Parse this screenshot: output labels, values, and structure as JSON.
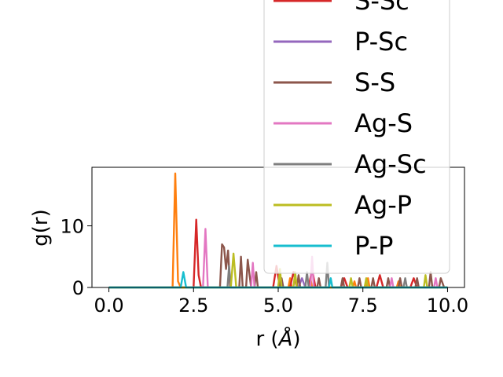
{
  "chart_data": {
    "type": "line",
    "title": "",
    "xlabel": "r ($\\AA$)",
    "xlabel_parts": {
      "prefix": "r (",
      "symbol": "Å",
      "suffix": ")"
    },
    "ylabel": "g(r)",
    "xlim": [
      -0.5,
      10.5
    ],
    "ylim": [
      0,
      19.5
    ],
    "xticks": [
      0.0,
      2.5,
      5.0,
      7.5,
      10.0
    ],
    "xtick_labels": [
      "0.0",
      "2.5",
      "5.0",
      "7.5",
      "10.0"
    ],
    "yticks": [
      0,
      10
    ],
    "ytick_labels": [
      "0",
      "10"
    ],
    "grid": false,
    "legend_placement": "top-right",
    "series": [
      {
        "name": "S-Sc",
        "color": "#d62728",
        "x": [
          0,
          2.5,
          2.58,
          2.65,
          2.72,
          4.85,
          4.95,
          5.05,
          5.35,
          5.45,
          5.55,
          5.9,
          6.0,
          6.1,
          6.85,
          6.95,
          7.05,
          7.9,
          8.0,
          8.1,
          8.9,
          9.0,
          9.1,
          10.0
        ],
        "y": [
          0,
          0,
          11,
          2,
          0,
          0,
          3.5,
          0,
          0,
          2.5,
          0,
          0,
          3,
          0,
          0,
          1.5,
          0,
          0,
          2,
          0,
          0,
          1.5,
          0,
          0
        ]
      },
      {
        "name": "P-Sc",
        "color": "#9467bd",
        "x": [
          0,
          5.6,
          5.7,
          5.8,
          10.0
        ],
        "y": [
          0,
          0,
          1.5,
          0,
          0
        ]
      },
      {
        "name": "S-S",
        "color": "#8c564b",
        "x": [
          0,
          3.28,
          3.34,
          3.4,
          3.46,
          3.52,
          3.58,
          3.85,
          3.9,
          3.95,
          4.05,
          4.1,
          4.2,
          4.3,
          4.35,
          4.4,
          5.05,
          5.1,
          5.15,
          5.55,
          5.6,
          5.65,
          6.15,
          6.2,
          6.25,
          6.85,
          6.9,
          6.95,
          7.35,
          7.4,
          7.45,
          7.75,
          7.8,
          7.85,
          8.2,
          8.25,
          8.3,
          8.55,
          8.6,
          8.65,
          9.05,
          9.1,
          9.15,
          9.45,
          9.5,
          9.55,
          9.75,
          9.8,
          9.9,
          10.0
        ],
        "y": [
          0,
          0,
          7,
          6.5,
          3,
          6,
          0,
          0,
          5,
          0,
          0,
          4.5,
          0,
          0,
          2.5,
          0,
          0,
          1.5,
          0,
          0,
          2,
          0,
          0,
          1.5,
          0,
          0,
          1.5,
          0,
          0,
          1.5,
          0,
          0,
          1.5,
          0,
          0,
          1.5,
          0,
          0,
          1.5,
          0,
          0,
          1.5,
          0,
          0,
          2.5,
          0,
          0,
          1.5,
          0,
          0
        ]
      },
      {
        "name": "Ag-S",
        "color": "#e377c2",
        "x": [
          0,
          2.78,
          2.85,
          2.92,
          4.2,
          4.25,
          4.3,
          5.95,
          6.0,
          6.05,
          8.3,
          8.35,
          8.4,
          9.6,
          9.65,
          9.7,
          10.0
        ],
        "y": [
          0,
          0,
          9.5,
          0,
          0,
          4,
          0,
          0,
          5,
          0,
          0,
          1.5,
          0,
          0,
          1.5,
          0,
          0
        ]
      },
      {
        "name": "Ag-Sc",
        "color": "#7f7f7f",
        "x": [
          0,
          3.5,
          3.55,
          3.6,
          5.8,
          5.85,
          5.9,
          6.4,
          6.45,
          6.5,
          8.7,
          8.75,
          8.8,
          10.0
        ],
        "y": [
          0,
          0,
          3.5,
          0,
          0,
          2.5,
          0,
          0,
          4,
          0,
          0,
          1.5,
          0,
          0
        ]
      },
      {
        "name": "Ag-P",
        "color": "#bcbd22",
        "x": [
          0,
          3.6,
          3.68,
          3.76,
          5.0,
          5.05,
          5.1,
          5.45,
          5.5,
          5.55,
          7.1,
          7.15,
          7.2,
          7.55,
          7.6,
          7.65,
          9.3,
          9.35,
          9.4,
          10.0
        ],
        "y": [
          0,
          0,
          5.5,
          0,
          0,
          3,
          0,
          0,
          2.5,
          0,
          0,
          1.5,
          0,
          0,
          1.5,
          0,
          0,
          2,
          0,
          0
        ]
      },
      {
        "name": "P-P",
        "color": "#17becf",
        "x": [
          0,
          2.12,
          2.2,
          2.28,
          6.5,
          6.55,
          6.6,
          10.0
        ],
        "y": [
          0,
          0,
          2.5,
          0,
          0,
          1.5,
          0,
          0
        ]
      },
      {
        "name": "",
        "color": "#ff7f0e",
        "x": [
          0,
          1.88,
          1.96,
          2.04,
          2.12,
          5.0,
          5.05,
          5.1,
          5.3,
          5.35,
          5.4,
          5.9,
          5.95,
          6.0,
          7.2,
          7.25,
          7.3,
          7.6,
          7.65,
          7.7,
          8.5,
          8.55,
          8.6,
          10.0
        ],
        "y": [
          0,
          0,
          18.5,
          1,
          0,
          0,
          2,
          0,
          0,
          1.5,
          0,
          0,
          1.5,
          0,
          0,
          1,
          0,
          0,
          1.5,
          0,
          0,
          1,
          0,
          0
        ]
      }
    ],
    "legend_entries": [
      "S-Sc",
      "P-Sc",
      "S-S",
      "Ag-S",
      "Ag-Sc",
      "Ag-P",
      "P-P"
    ]
  }
}
